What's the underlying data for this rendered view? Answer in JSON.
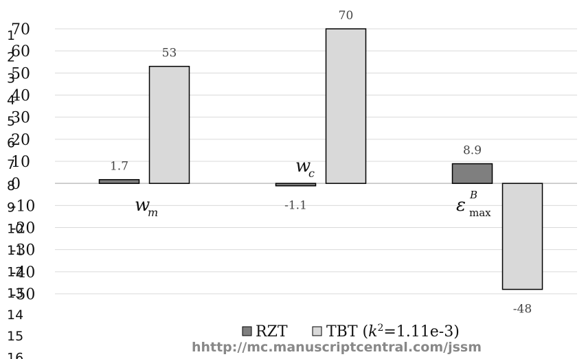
{
  "line_numbers": [
    "1",
    "2",
    "3",
    "4",
    "5",
    "6",
    "7",
    "8",
    "9",
    "10",
    "11",
    "12",
    "13",
    "14",
    "15",
    "16"
  ],
  "footer_text": "hhttp://mc.manuscriptcentral.com/jssm",
  "colors": {
    "RZT": "#7f7f7f",
    "TBT": "#d9d9d9",
    "grid": "#d9d9d9",
    "axis": "#bfbfbf"
  },
  "chart_data": {
    "type": "bar",
    "categories": [
      {
        "main": "w",
        "sub": "m"
      },
      {
        "main": "w",
        "sub": "c"
      },
      {
        "main": "ε",
        "sup": "B",
        "sub": "max"
      }
    ],
    "series": [
      {
        "name": "RZT",
        "values": [
          1.7,
          -1.1,
          8.9
        ],
        "labels": [
          "1.7",
          "-1.1",
          "8.9"
        ]
      },
      {
        "name": "TBT (k2=1.11e-3)",
        "values": [
          53,
          70,
          -48
        ],
        "labels": [
          "53",
          "70",
          "-48"
        ]
      }
    ],
    "legend": [
      {
        "label": "RZT"
      },
      {
        "prefix": "TBT (",
        "italic": "k",
        "sup": "2",
        "suffix": "=1.11e-3)"
      }
    ],
    "y_ticks": [
      "70",
      "60",
      "50",
      "40",
      "30",
      "20",
      "10",
      "0",
      "-10",
      "-20",
      "-30",
      "-40",
      "-50"
    ],
    "ylim": [
      -50,
      70
    ],
    "grid": true,
    "legend_position": "bottom"
  }
}
